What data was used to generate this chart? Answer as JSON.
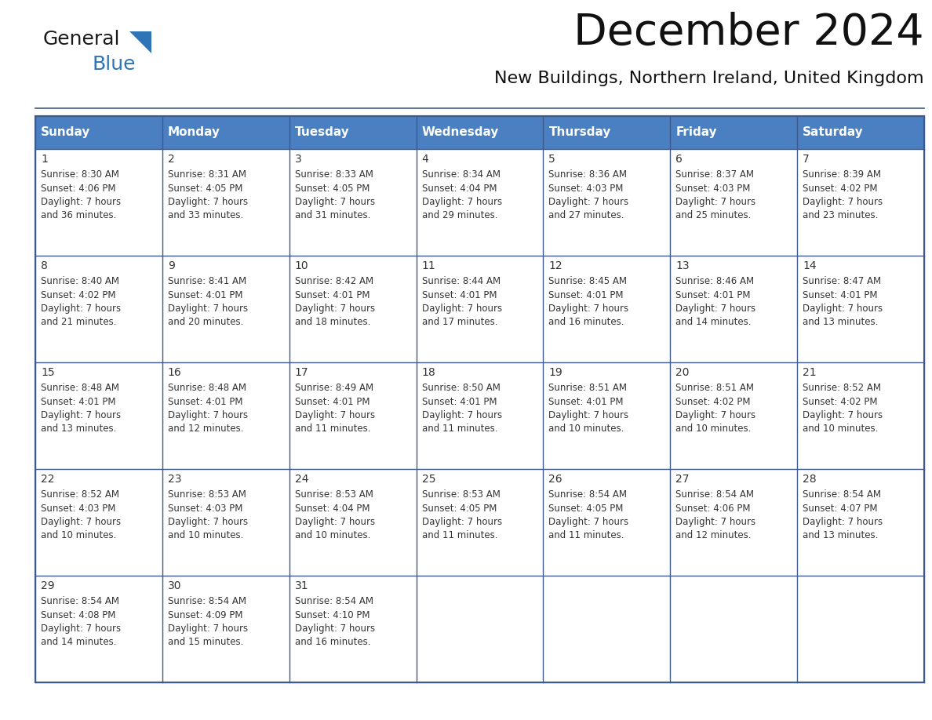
{
  "title": "December 2024",
  "subtitle": "New Buildings, Northern Ireland, United Kingdom",
  "header_bg": "#4a7fc1",
  "header_text_color": "#FFFFFF",
  "day_names": [
    "Sunday",
    "Monday",
    "Tuesday",
    "Wednesday",
    "Thursday",
    "Friday",
    "Saturday"
  ],
  "days": [
    {
      "day": 1,
      "col": 0,
      "row": 0,
      "sunrise": "8:30 AM",
      "sunset": "4:06 PM",
      "daylight": "7 hours and 36 minutes."
    },
    {
      "day": 2,
      "col": 1,
      "row": 0,
      "sunrise": "8:31 AM",
      "sunset": "4:05 PM",
      "daylight": "7 hours and 33 minutes."
    },
    {
      "day": 3,
      "col": 2,
      "row": 0,
      "sunrise": "8:33 AM",
      "sunset": "4:05 PM",
      "daylight": "7 hours and 31 minutes."
    },
    {
      "day": 4,
      "col": 3,
      "row": 0,
      "sunrise": "8:34 AM",
      "sunset": "4:04 PM",
      "daylight": "7 hours and 29 minutes."
    },
    {
      "day": 5,
      "col": 4,
      "row": 0,
      "sunrise": "8:36 AM",
      "sunset": "4:03 PM",
      "daylight": "7 hours and 27 minutes."
    },
    {
      "day": 6,
      "col": 5,
      "row": 0,
      "sunrise": "8:37 AM",
      "sunset": "4:03 PM",
      "daylight": "7 hours and 25 minutes."
    },
    {
      "day": 7,
      "col": 6,
      "row": 0,
      "sunrise": "8:39 AM",
      "sunset": "4:02 PM",
      "daylight": "7 hours and 23 minutes."
    },
    {
      "day": 8,
      "col": 0,
      "row": 1,
      "sunrise": "8:40 AM",
      "sunset": "4:02 PM",
      "daylight": "7 hours and 21 minutes."
    },
    {
      "day": 9,
      "col": 1,
      "row": 1,
      "sunrise": "8:41 AM",
      "sunset": "4:01 PM",
      "daylight": "7 hours and 20 minutes."
    },
    {
      "day": 10,
      "col": 2,
      "row": 1,
      "sunrise": "8:42 AM",
      "sunset": "4:01 PM",
      "daylight": "7 hours and 18 minutes."
    },
    {
      "day": 11,
      "col": 3,
      "row": 1,
      "sunrise": "8:44 AM",
      "sunset": "4:01 PM",
      "daylight": "7 hours and 17 minutes."
    },
    {
      "day": 12,
      "col": 4,
      "row": 1,
      "sunrise": "8:45 AM",
      "sunset": "4:01 PM",
      "daylight": "7 hours and 16 minutes."
    },
    {
      "day": 13,
      "col": 5,
      "row": 1,
      "sunrise": "8:46 AM",
      "sunset": "4:01 PM",
      "daylight": "7 hours and 14 minutes."
    },
    {
      "day": 14,
      "col": 6,
      "row": 1,
      "sunrise": "8:47 AM",
      "sunset": "4:01 PM",
      "daylight": "7 hours and 13 minutes."
    },
    {
      "day": 15,
      "col": 0,
      "row": 2,
      "sunrise": "8:48 AM",
      "sunset": "4:01 PM",
      "daylight": "7 hours and 13 minutes."
    },
    {
      "day": 16,
      "col": 1,
      "row": 2,
      "sunrise": "8:48 AM",
      "sunset": "4:01 PM",
      "daylight": "7 hours and 12 minutes."
    },
    {
      "day": 17,
      "col": 2,
      "row": 2,
      "sunrise": "8:49 AM",
      "sunset": "4:01 PM",
      "daylight": "7 hours and 11 minutes."
    },
    {
      "day": 18,
      "col": 3,
      "row": 2,
      "sunrise": "8:50 AM",
      "sunset": "4:01 PM",
      "daylight": "7 hours and 11 minutes."
    },
    {
      "day": 19,
      "col": 4,
      "row": 2,
      "sunrise": "8:51 AM",
      "sunset": "4:01 PM",
      "daylight": "7 hours and 10 minutes."
    },
    {
      "day": 20,
      "col": 5,
      "row": 2,
      "sunrise": "8:51 AM",
      "sunset": "4:02 PM",
      "daylight": "7 hours and 10 minutes."
    },
    {
      "day": 21,
      "col": 6,
      "row": 2,
      "sunrise": "8:52 AM",
      "sunset": "4:02 PM",
      "daylight": "7 hours and 10 minutes."
    },
    {
      "day": 22,
      "col": 0,
      "row": 3,
      "sunrise": "8:52 AM",
      "sunset": "4:03 PM",
      "daylight": "7 hours and 10 minutes."
    },
    {
      "day": 23,
      "col": 1,
      "row": 3,
      "sunrise": "8:53 AM",
      "sunset": "4:03 PM",
      "daylight": "7 hours and 10 minutes."
    },
    {
      "day": 24,
      "col": 2,
      "row": 3,
      "sunrise": "8:53 AM",
      "sunset": "4:04 PM",
      "daylight": "7 hours and 10 minutes."
    },
    {
      "day": 25,
      "col": 3,
      "row": 3,
      "sunrise": "8:53 AM",
      "sunset": "4:05 PM",
      "daylight": "7 hours and 11 minutes."
    },
    {
      "day": 26,
      "col": 4,
      "row": 3,
      "sunrise": "8:54 AM",
      "sunset": "4:05 PM",
      "daylight": "7 hours and 11 minutes."
    },
    {
      "day": 27,
      "col": 5,
      "row": 3,
      "sunrise": "8:54 AM",
      "sunset": "4:06 PM",
      "daylight": "7 hours and 12 minutes."
    },
    {
      "day": 28,
      "col": 6,
      "row": 3,
      "sunrise": "8:54 AM",
      "sunset": "4:07 PM",
      "daylight": "7 hours and 13 minutes."
    },
    {
      "day": 29,
      "col": 0,
      "row": 4,
      "sunrise": "8:54 AM",
      "sunset": "4:08 PM",
      "daylight": "7 hours and 14 minutes."
    },
    {
      "day": 30,
      "col": 1,
      "row": 4,
      "sunrise": "8:54 AM",
      "sunset": "4:09 PM",
      "daylight": "7 hours and 15 minutes."
    },
    {
      "day": 31,
      "col": 2,
      "row": 4,
      "sunrise": "8:54 AM",
      "sunset": "4:10 PM",
      "daylight": "7 hours and 16 minutes."
    }
  ],
  "num_rows": 5,
  "num_cols": 7,
  "bg_color": "#FFFFFF",
  "cell_text_color": "#333333",
  "grid_color": "#3d5a8a",
  "logo_general_color": "#1a1a1a",
  "logo_blue_color": "#2E75B6",
  "logo_triangle_color": "#2E75B6",
  "title_fontsize": 40,
  "subtitle_fontsize": 16,
  "header_fontsize": 11,
  "daynum_fontsize": 10,
  "cell_fontsize": 8.5
}
